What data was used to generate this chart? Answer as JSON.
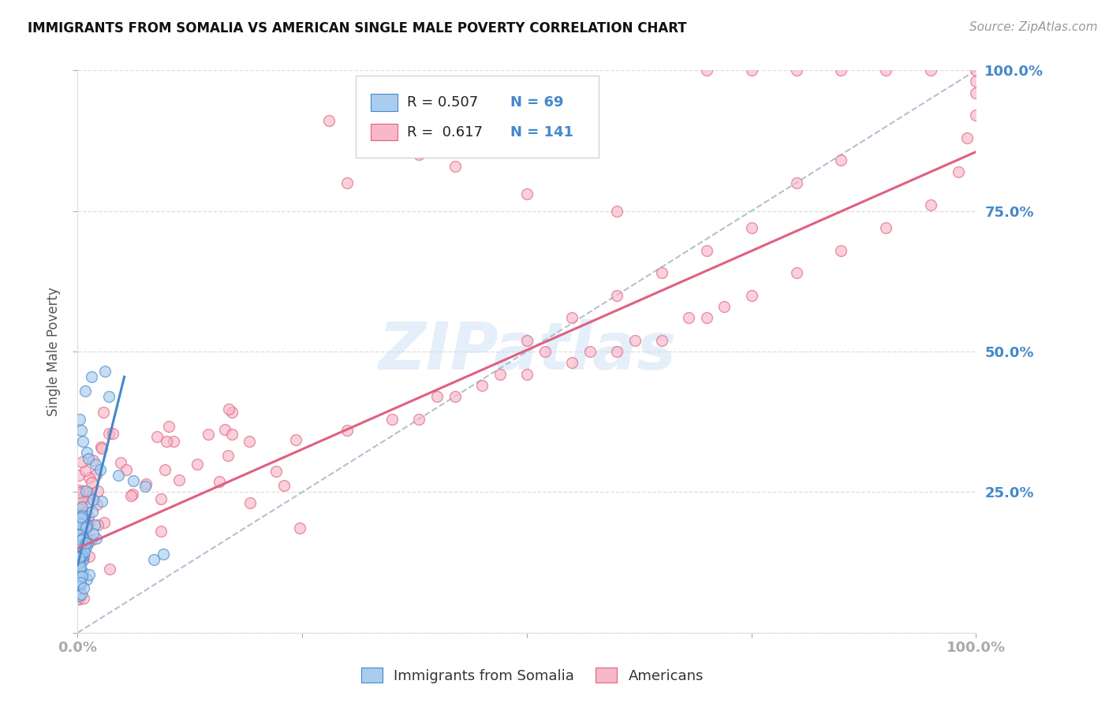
{
  "title": "IMMIGRANTS FROM SOMALIA VS AMERICAN SINGLE MALE POVERTY CORRELATION CHART",
  "source": "Source: ZipAtlas.com",
  "ylabel": "Single Male Poverty",
  "xlim": [
    0,
    1.0
  ],
  "ylim": [
    0,
    1.0
  ],
  "R1": "0.507",
  "N1": "69",
  "R2": "0.617",
  "N2": "141",
  "color_blue": "#aaccee",
  "color_pink": "#f8b8c8",
  "line_blue": "#4488cc",
  "line_pink": "#e06080",
  "line_dashed": "#aabbcc",
  "watermark": "ZIPatlas",
  "background": "#ffffff",
  "grid_color": "#dddddd",
  "title_color": "#111111",
  "tick_color": "#4488cc",
  "source_color": "#999999",
  "legend_label1": "Immigrants from Somalia",
  "legend_label2": "Americans",
  "blue_line_x0": 0.0,
  "blue_line_y0": 0.12,
  "blue_line_x1": 0.052,
  "blue_line_y1": 0.455,
  "pink_line_x0": 0.0,
  "pink_line_y0": 0.15,
  "pink_line_x1": 1.0,
  "pink_line_y1": 0.855,
  "dashed_line_x0": 0.0,
  "dashed_line_y0": 0.0,
  "dashed_line_x1": 1.0,
  "dashed_line_y1": 1.0
}
